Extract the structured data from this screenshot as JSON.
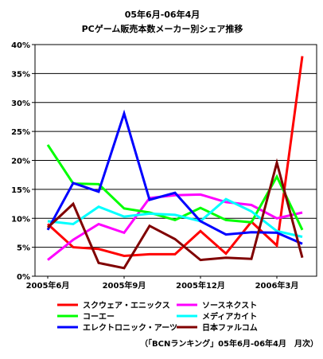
{
  "chart_data": {
    "type": "line",
    "title": "05年6月-06年4月",
    "subtitle": "PCゲーム販売本数メーカー別シェア推移",
    "xlabel": "",
    "ylabel": "",
    "x": [
      "2005-06",
      "2005-07",
      "2005-08",
      "2005-09",
      "2005-10",
      "2005-11",
      "2005-12",
      "2006-01",
      "2006-02",
      "2006-03",
      "2006-04"
    ],
    "x_tick_labels": [
      "2005年6月",
      "2005年9月",
      "2005年12月",
      "2006年3月"
    ],
    "x_tick_index": [
      0,
      3,
      6,
      9
    ],
    "y_tick_labels": [
      "0%",
      "5%",
      "10%",
      "15%",
      "20%",
      "25%",
      "30%",
      "35%",
      "40%"
    ],
    "ylim": [
      0,
      40
    ],
    "y_step": 5,
    "grid": "horizontal",
    "legend_position": "bottom",
    "series": [
      {
        "name": "スクウェア・エニックス",
        "color": "#ff0000",
        "values": [
          9,
          5,
          4.7,
          3.5,
          3.8,
          3.8,
          7.8,
          3.9,
          9.4,
          5.3,
          38
        ]
      },
      {
        "name": "ソースネクスト",
        "color": "#ff00ff",
        "values": [
          2.8,
          6.3,
          9,
          7.5,
          13.5,
          14,
          14.1,
          12.8,
          12.3,
          10,
          11
        ]
      },
      {
        "name": "コーエー",
        "color": "#00ff00",
        "values": [
          22.7,
          16,
          15.9,
          11.7,
          11,
          9.7,
          11.8,
          9.7,
          9.3,
          17.2,
          8
        ]
      },
      {
        "name": "メディアカイト",
        "color": "#00ffff",
        "values": [
          9.5,
          9,
          12,
          10.3,
          10.8,
          10.6,
          9.5,
          13.3,
          11.2,
          7.8,
          6.8
        ]
      },
      {
        "name": "エレクトロニック・アーツ",
        "color": "#0000ff",
        "values": [
          8,
          16.1,
          14.6,
          28.1,
          13.2,
          14.4,
          9.5,
          7.2,
          7.6,
          7.5,
          5.6
        ]
      },
      {
        "name": "日本ファルコム",
        "color": "#800000",
        "values": [
          8.4,
          12.5,
          2.3,
          1.4,
          8.7,
          6.4,
          2.8,
          3.2,
          3,
          19.6,
          3.2
        ]
      }
    ],
    "source": "（「BCNランキング」05年6月-06年4月　月次）"
  }
}
